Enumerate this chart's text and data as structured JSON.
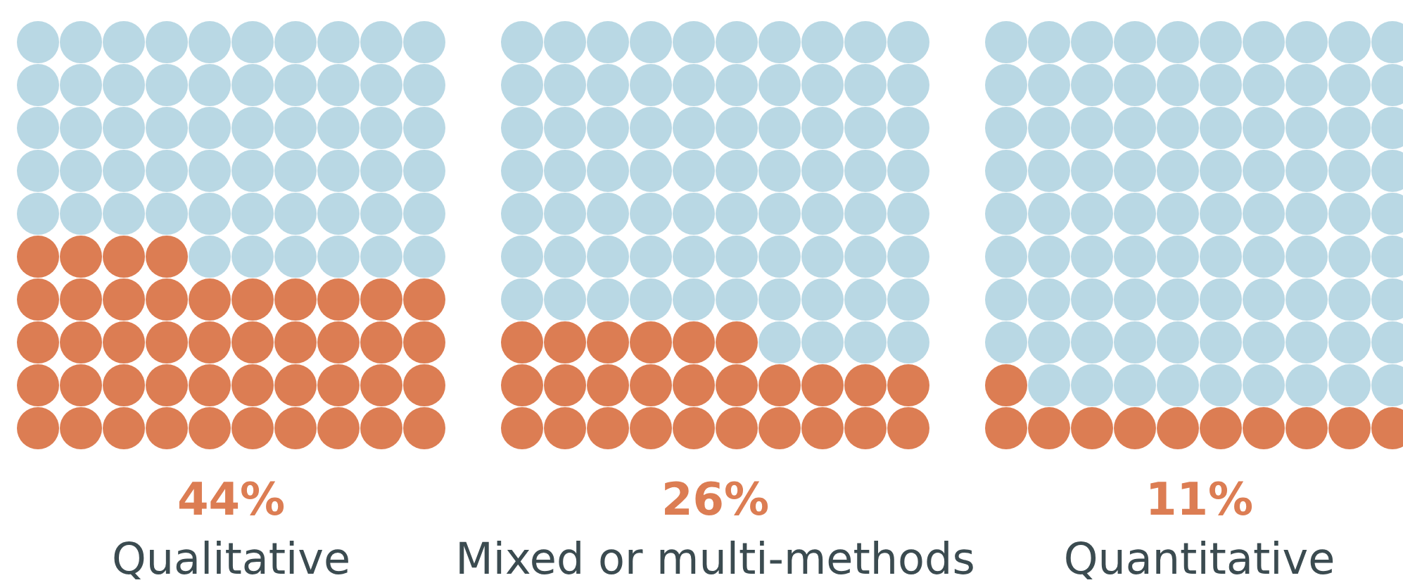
{
  "chart_data": [
    {
      "type": "other",
      "categories": [
        "Qualitative"
      ],
      "values": [
        44
      ],
      "value_labels": [
        "44%"
      ],
      "colors": [
        "#dc7d53"
      ]
    },
    {
      "type": "other",
      "categories": [
        "Mixed or multi-methods"
      ],
      "values": [
        26
      ],
      "value_labels": [
        "26%"
      ],
      "colors": [
        "#dc7d53"
      ]
    },
    {
      "type": "other",
      "categories": [
        "Quantitative"
      ],
      "values": [
        11
      ],
      "value_labels": [
        "11%"
      ],
      "colors": [
        "#dc7d53"
      ]
    }
  ]
}
